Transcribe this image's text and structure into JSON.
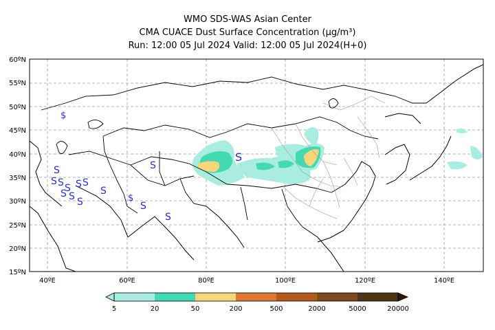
{
  "title": {
    "line1": "WMO SDS-WAS Asian Center",
    "line2": "CMA CUACE Dust Surface Concentration (μg/m³)",
    "line3": "Run: 12:00 05 Jul 2024    Valid: 12:00 05 Jul 2024(H+0)"
  },
  "axes": {
    "lat_labels": [
      "60ºN",
      "55ºN",
      "50ºN",
      "45ºN",
      "40ºN",
      "35ºN",
      "30ºN",
      "25ºN",
      "20ºN",
      "15ºN"
    ],
    "lon_labels": [
      "40ºE",
      "60ºE",
      "80ºE",
      "100ºE",
      "120ºE",
      "140ºE"
    ]
  },
  "colorbar": {
    "levels": [
      "5",
      "20",
      "50",
      "200",
      "500",
      "2000",
      "5000",
      "20000"
    ],
    "colors": [
      "#a9ece0",
      "#45d9b0",
      "#f5d67a",
      "#dc7a32",
      "#b25a1c",
      "#7e4a1c",
      "#4c3416",
      "#2a1a0c"
    ]
  },
  "symbols": {
    "sand_storm_marker": "S",
    "dust_marker": "$"
  }
}
